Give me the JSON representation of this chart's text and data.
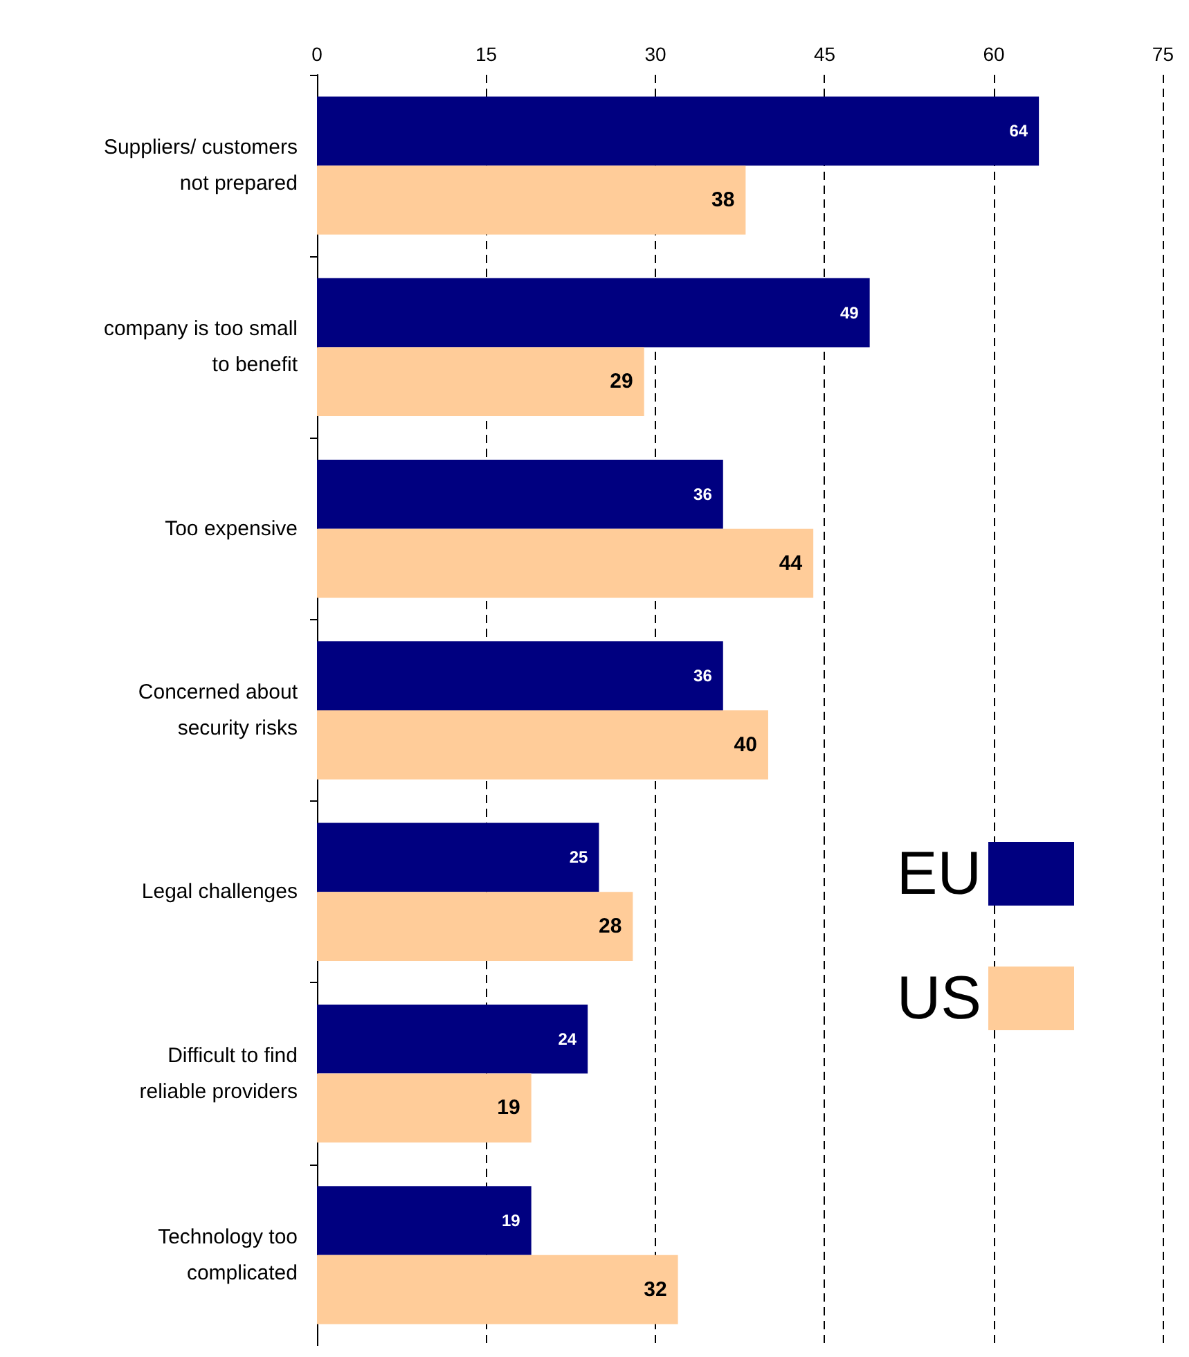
{
  "chart_data": {
    "type": "bar",
    "orientation": "horizontal",
    "categories": [
      "Suppliers/ customers not prepared",
      "company is too small to benefit",
      "Too expensive",
      "Concerned about security risks",
      "Legal challenges",
      "Difficult to find reliable providers",
      "Technology too complicated"
    ],
    "series": [
      {
        "name": "EU",
        "color": "#000080",
        "values": [
          64,
          49,
          36,
          36,
          25,
          24,
          19
        ]
      },
      {
        "name": "US",
        "color": "#ffcc99",
        "values": [
          38,
          29,
          44,
          40,
          28,
          19,
          32
        ]
      }
    ],
    "xlim": [
      0,
      75
    ],
    "xticks": [
      0,
      15,
      30,
      45,
      60,
      75
    ],
    "grid": "x",
    "legend": "right",
    "data_labels": true
  }
}
